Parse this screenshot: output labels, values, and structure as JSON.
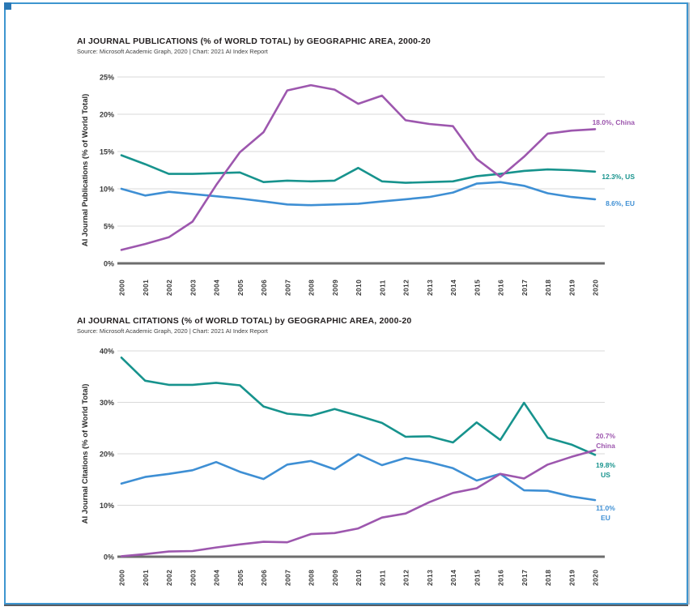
{
  "page": {
    "background": "#ffffff",
    "frame_color": "#3e95cf",
    "frame_shadow_color": "#575c62",
    "grid_color": "#d9d9d9",
    "axis_color": "#6d6d6d",
    "title_color": "#231f20"
  },
  "chart_data": [
    {
      "type": "line",
      "title": "AI JOURNAL PUBLICATIONS (% of WORLD TOTAL) by GEOGRAPHIC AREA, 2000-20",
      "source": "Source: Microsoft Academic Graph, 2020 | Chart: 2021 AI Index Report",
      "xlabel": "",
      "ylabel": "AI Journal Publications (% of World Total)",
      "grid": true,
      "legend_position": "right-end-labels",
      "ylim": [
        0,
        25
      ],
      "yticks": [
        0,
        5,
        10,
        15,
        20,
        25
      ],
      "ytick_labels": [
        "0%",
        "5%",
        "10%",
        "15%",
        "20%",
        "25%"
      ],
      "x": [
        2000,
        2001,
        2002,
        2003,
        2004,
        2005,
        2006,
        2007,
        2008,
        2009,
        2010,
        2011,
        2012,
        2013,
        2014,
        2015,
        2016,
        2017,
        2018,
        2019,
        2020
      ],
      "xtick_labels": [
        "2000",
        "2001",
        "2002",
        "2003",
        "2004",
        "2005",
        "2006",
        "2007",
        "2008",
        "2009",
        "2010",
        "2011",
        "2012",
        "2013",
        "2014",
        "2015",
        "2016",
        "2017",
        "2018",
        "2019",
        "2020"
      ],
      "series": [
        {
          "name": "China",
          "color": "#9d57ae",
          "end_label_lines": [
            "18.0%, China"
          ],
          "values": [
            1.8,
            2.6,
            3.5,
            5.6,
            10.5,
            14.9,
            17.6,
            23.2,
            23.9,
            23.3,
            21.4,
            22.5,
            19.2,
            18.7,
            18.4,
            14.0,
            11.6,
            14.3,
            17.4,
            17.8,
            18.0
          ]
        },
        {
          "name": "US",
          "color": "#17938d",
          "end_label_lines": [
            "12.3%, US"
          ],
          "values": [
            14.5,
            13.3,
            12.0,
            12.0,
            12.1,
            12.2,
            10.9,
            11.1,
            11.0,
            11.1,
            12.8,
            11.0,
            10.8,
            10.9,
            11.0,
            11.7,
            12.0,
            12.4,
            12.6,
            12.5,
            12.3
          ]
        },
        {
          "name": "EU",
          "color": "#3e8fd4",
          "end_label_lines": [
            "8.6%, EU"
          ],
          "values": [
            10.0,
            9.1,
            9.6,
            9.3,
            9.0,
            8.7,
            8.3,
            7.9,
            7.8,
            7.9,
            8.0,
            8.3,
            8.6,
            8.9,
            9.5,
            10.7,
            10.9,
            10.4,
            9.4,
            8.9,
            8.6
          ]
        }
      ]
    },
    {
      "type": "line",
      "title": "AI JOURNAL CITATIONS (% of WORLD TOTAL) by GEOGRAPHIC AREA, 2000-20",
      "source": "Source: Microsoft Academic Graph, 2020 | Chart: 2021 AI Index Report",
      "xlabel": "",
      "ylabel": "AI Journal Citations (% of World Total)",
      "grid": true,
      "legend_position": "right-end-labels",
      "ylim": [
        0,
        40
      ],
      "yticks": [
        0,
        10,
        20,
        30,
        40
      ],
      "ytick_labels": [
        "0%",
        "10%",
        "20%",
        "30%",
        "40%"
      ],
      "x": [
        2000,
        2001,
        2002,
        2003,
        2004,
        2005,
        2006,
        2007,
        2008,
        2009,
        2010,
        2011,
        2012,
        2013,
        2014,
        2015,
        2016,
        2017,
        2018,
        2019,
        2020
      ],
      "xtick_labels": [
        "2000",
        "2001",
        "2002",
        "2003",
        "2004",
        "2005",
        "2006",
        "2007",
        "2008",
        "2009",
        "2010",
        "2011",
        "2012",
        "2013",
        "2014",
        "2015",
        "2016",
        "2017",
        "2018",
        "2019",
        "2020"
      ],
      "series": [
        {
          "name": "China",
          "color": "#9d57ae",
          "end_label_lines": [
            "20.7%",
            "China"
          ],
          "values": [
            0.1,
            0.5,
            1.0,
            1.1,
            1.8,
            2.4,
            2.9,
            2.8,
            4.4,
            4.6,
            5.5,
            7.6,
            8.4,
            10.6,
            12.4,
            13.3,
            16.1,
            15.2,
            17.9,
            19.4,
            20.7
          ]
        },
        {
          "name": "US",
          "color": "#17938d",
          "end_label_lines": [
            "19.8%",
            "US"
          ],
          "values": [
            38.7,
            34.2,
            33.4,
            33.4,
            33.8,
            33.3,
            29.2,
            27.8,
            27.4,
            28.7,
            27.4,
            26.0,
            23.3,
            23.4,
            22.2,
            26.1,
            22.7,
            29.9,
            23.1,
            21.8,
            19.8
          ]
        },
        {
          "name": "EU",
          "color": "#3e8fd4",
          "end_label_lines": [
            "11.0%",
            "EU"
          ],
          "values": [
            14.2,
            15.5,
            16.1,
            16.8,
            18.4,
            16.5,
            15.1,
            17.9,
            18.6,
            17.0,
            19.9,
            17.8,
            19.2,
            18.4,
            17.2,
            14.8,
            16.1,
            12.9,
            12.8,
            11.7,
            11.0
          ]
        }
      ]
    }
  ]
}
